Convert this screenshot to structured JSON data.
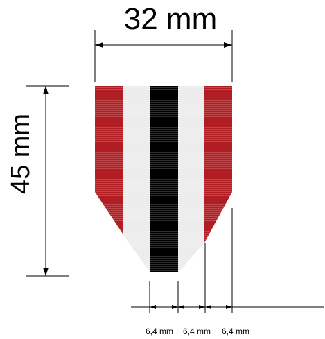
{
  "width_label": "32 mm",
  "height_label": "45 mm",
  "stripe_labels": [
    "6,4 mm",
    "6,4 mm",
    "6,4 mm"
  ],
  "colors": {
    "red": "#b01e23",
    "white": "#ececec",
    "black": "#000000",
    "line": "#000000"
  },
  "ribbon_stripes": [
    "red",
    "white",
    "black",
    "white",
    "red"
  ]
}
